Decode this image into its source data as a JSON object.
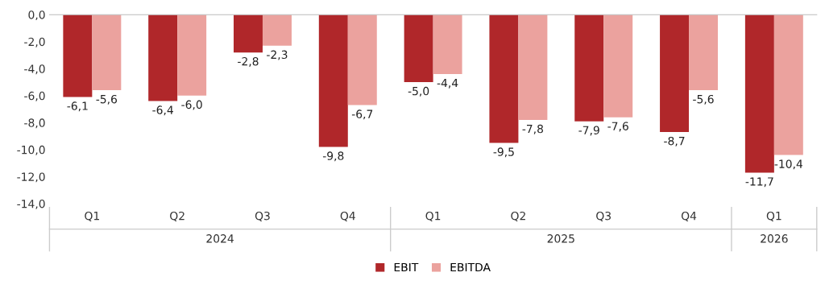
{
  "chart_data": {
    "type": "bar",
    "categories": [
      "Q1",
      "Q2",
      "Q3",
      "Q4",
      "Q1",
      "Q2",
      "Q3",
      "Q4",
      "Q1"
    ],
    "annotations": [
      "2024",
      "2025",
      "2026"
    ],
    "series": [
      {
        "name": "EBIT",
        "color": "#b0272a",
        "values": [
          -6.1,
          -6.4,
          -2.8,
          -9.8,
          -5.0,
          -9.5,
          -7.9,
          -8.7,
          -11.7
        ],
        "value_labels": [
          "-6,1",
          "-6,4",
          "-2,8",
          "-9,8",
          "-5,0",
          "-9,5",
          "-7,9",
          "-8,7",
          "-11,7"
        ]
      },
      {
        "name": "EBITDA",
        "color": "#eba29e",
        "values": [
          -5.6,
          -6.0,
          -2.3,
          -6.7,
          -4.4,
          -7.8,
          -7.6,
          -5.6,
          -10.4
        ],
        "value_labels": [
          "-5,6",
          "-6,0",
          "-2,3",
          "-6,7",
          "-4,4",
          "-7,8",
          "-7,6",
          "-5,6",
          "-10,4"
        ]
      }
    ],
    "ylim": [
      -14,
      0
    ],
    "yticks": [
      {
        "value": 0,
        "label": "0,0"
      },
      {
        "value": -2,
        "label": "-2,0"
      },
      {
        "value": -4,
        "label": "-4,0"
      },
      {
        "value": -6,
        "label": "-6,0"
      },
      {
        "value": -8,
        "label": "-8,0"
      },
      {
        "value": -10,
        "label": "-10,0"
      },
      {
        "value": -12,
        "label": "-12,0"
      },
      {
        "value": -14,
        "label": "-14,0"
      }
    ],
    "grid": false,
    "legend": "bottom"
  }
}
